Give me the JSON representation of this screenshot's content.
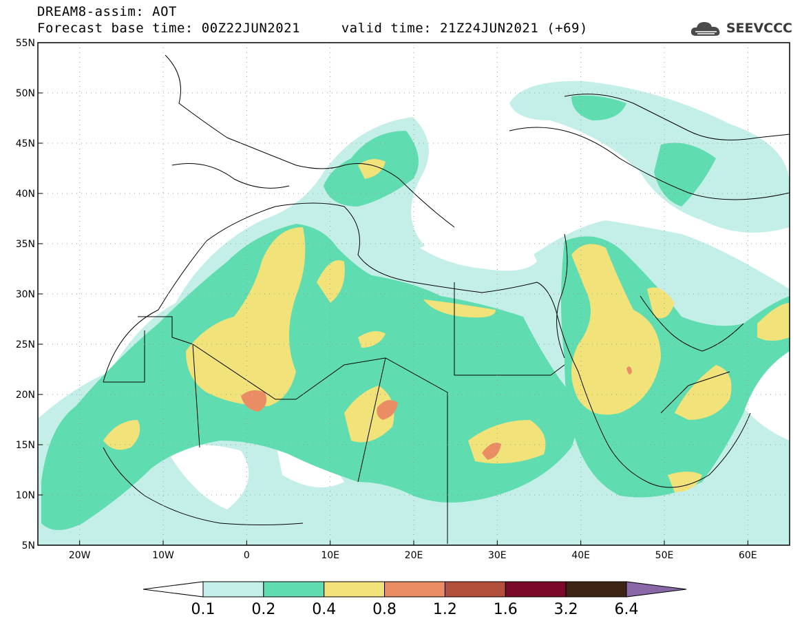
{
  "header": {
    "line1": "DREAM8-assim: AOT",
    "line2": "Forecast base time: 00Z22JUN2021     valid time: 21Z24JUN2021 (+69)"
  },
  "logo": {
    "text": "SEEVCCC",
    "icon": "cloud-icon"
  },
  "map": {
    "lon_range": [
      -25,
      65
    ],
    "lat_range": [
      5,
      55
    ],
    "lon_ticks": [
      {
        "value": -20,
        "label": "20W"
      },
      {
        "value": -10,
        "label": "10W"
      },
      {
        "value": 0,
        "label": "0"
      },
      {
        "value": 10,
        "label": "10E"
      },
      {
        "value": 20,
        "label": "20E"
      },
      {
        "value": 30,
        "label": "30E"
      },
      {
        "value": 40,
        "label": "40E"
      },
      {
        "value": 50,
        "label": "50E"
      },
      {
        "value": 60,
        "label": "60E"
      }
    ],
    "lat_ticks": [
      {
        "value": 5,
        "label": "5N"
      },
      {
        "value": 10,
        "label": "10N"
      },
      {
        "value": 15,
        "label": "15N"
      },
      {
        "value": 20,
        "label": "20N"
      },
      {
        "value": 25,
        "label": "25N"
      },
      {
        "value": 30,
        "label": "30N"
      },
      {
        "value": 35,
        "label": "35N"
      },
      {
        "value": 40,
        "label": "40N"
      },
      {
        "value": 45,
        "label": "45N"
      },
      {
        "value": 50,
        "label": "50N"
      },
      {
        "value": 55,
        "label": "55N"
      }
    ],
    "gridlines": "dotted",
    "colors": {
      "lt01": "#ffffff",
      "b01_02": "#c4efe8",
      "b02_04": "#5fdcb0",
      "b04_08": "#f2e27a",
      "b08_12": "#ea8d64",
      "b12_16": "#b2503c",
      "b16_32": "#7a0a2a",
      "b32_64": "#3e2414",
      "gt64": "#8a68a8"
    }
  },
  "colorbar": {
    "labels": [
      "0.1",
      "0.2",
      "0.4",
      "0.8",
      "1.2",
      "1.6",
      "3.2",
      "6.4"
    ],
    "colors": [
      "#ffffff",
      "#c4efe8",
      "#5fdcb0",
      "#f2e27a",
      "#ea8d64",
      "#b2503c",
      "#7a0a2a",
      "#3e2414",
      "#8a68a8"
    ]
  }
}
